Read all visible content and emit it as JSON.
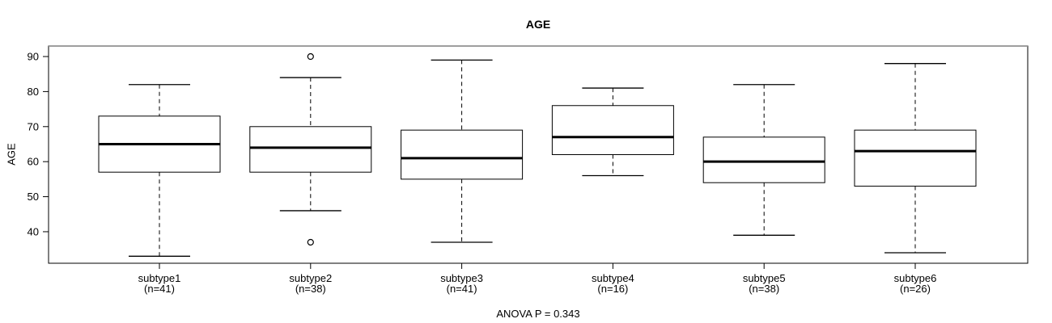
{
  "chart_data": {
    "type": "boxplot",
    "title": "AGE",
    "ylabel": "AGE",
    "annotation": "ANOVA P = 0.343",
    "ylim": [
      31,
      93
    ],
    "yticks": [
      40,
      50,
      60,
      70,
      80,
      90
    ],
    "grid": false,
    "box_fill": "#ffffff",
    "line_color": "#000000",
    "frame_top_color": "#909090",
    "groups": [
      {
        "label": "subtype1",
        "sublabel": "(n=41)",
        "low": 33,
        "q1": 57,
        "median": 65,
        "q3": 73,
        "high": 82,
        "outliers": []
      },
      {
        "label": "subtype2",
        "sublabel": "(n=38)",
        "low": 46,
        "q1": 57,
        "median": 64,
        "q3": 70,
        "high": 84,
        "outliers": [
          90,
          37
        ]
      },
      {
        "label": "subtype3",
        "sublabel": "(n=41)",
        "low": 37,
        "q1": 55,
        "median": 61,
        "q3": 69,
        "high": 89,
        "outliers": []
      },
      {
        "label": "subtype4",
        "sublabel": "(n=16)",
        "low": 56,
        "q1": 62,
        "median": 67,
        "q3": 76,
        "high": 81,
        "outliers": []
      },
      {
        "label": "subtype5",
        "sublabel": "(n=38)",
        "low": 39,
        "q1": 54,
        "median": 60,
        "q3": 67,
        "high": 82,
        "outliers": []
      },
      {
        "label": "subtype6",
        "sublabel": "(n=26)",
        "low": 34,
        "q1": 53,
        "median": 63,
        "q3": 69,
        "high": 88,
        "outliers": []
      }
    ]
  }
}
